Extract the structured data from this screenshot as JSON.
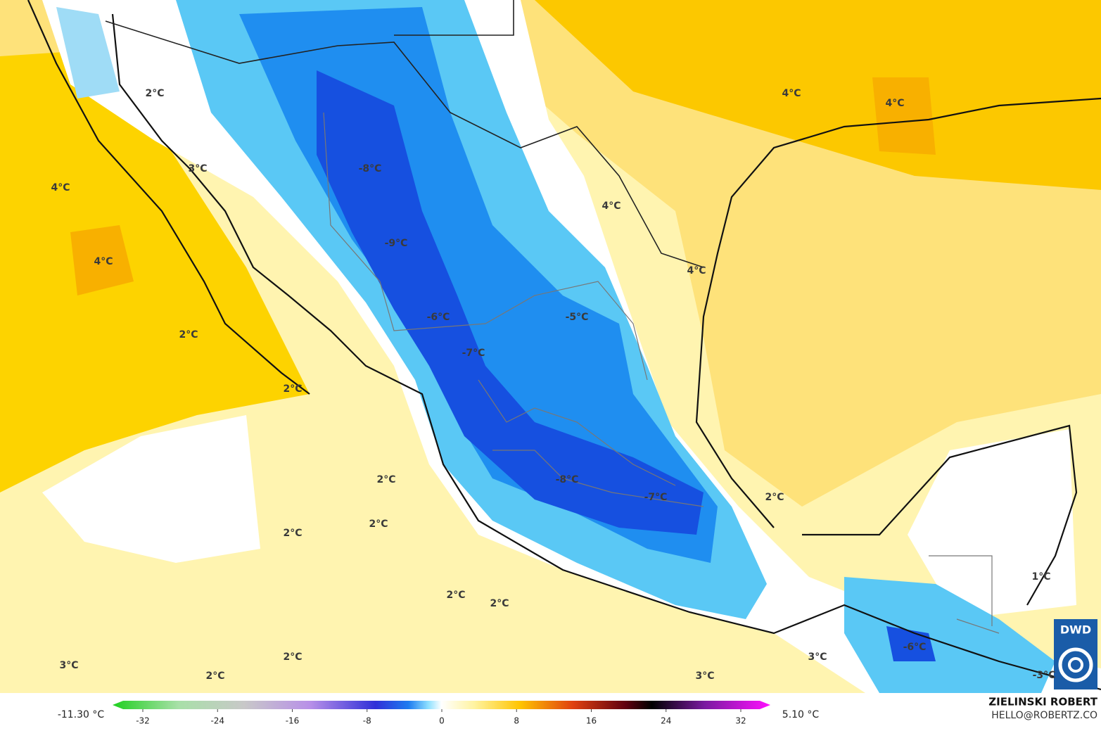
{
  "map_labels": [
    "2°C",
    "3°C",
    "4°C",
    "4°C",
    "2°C",
    "2°C",
    "-8°C",
    "-9°C",
    "-6°C",
    "-7°C",
    "-5°C",
    "4°C",
    "4°C",
    "4°C",
    "4°C",
    "2°C",
    "-8°C",
    "-7°C",
    "2°C",
    "2°C",
    "2°C",
    "2°C",
    "2°C",
    "1°C",
    "2°C",
    "2°C",
    "3°C",
    "3°C",
    "3°C",
    "-6°C",
    "-3°C"
  ],
  "colorbar": {
    "min_label": "-11.30 °C",
    "max_label": "5.10 °C",
    "ticks": [
      -32,
      -24,
      -16,
      -8,
      0,
      8,
      16,
      24,
      32
    ]
  },
  "credit": {
    "author": "ZIELINSKI ROBERT",
    "contact": "HELLO@ROBERTZ.CO",
    "logo": "DWD"
  }
}
